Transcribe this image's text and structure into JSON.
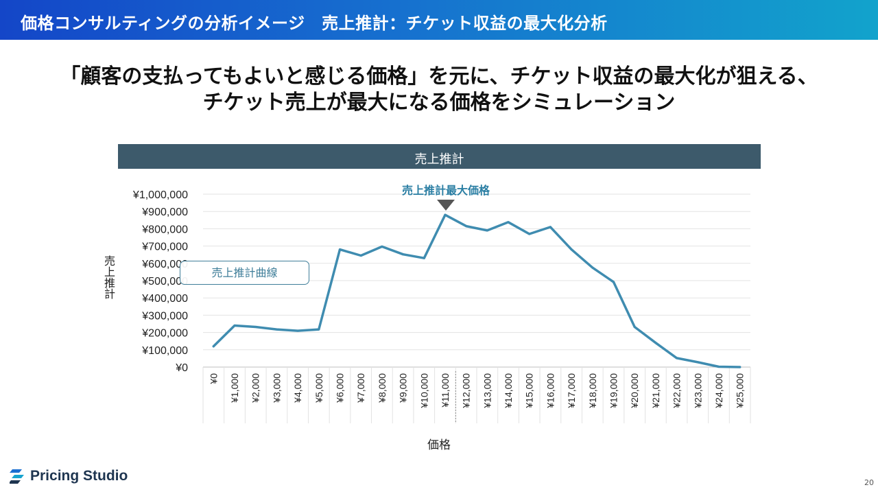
{
  "header": {
    "title": "価格コンサルティングの分析イメージ　売上推計：チケット収益の最大化分析"
  },
  "headline": {
    "line1": "「顧客の支払ってもよいと感じる価格」を元に、チケット収益の最大化が狙える、",
    "line2": "チケット売上が最大になる価格をシミュレーション"
  },
  "chart_title": "売上推計",
  "annotations": {
    "peak_label": "売上推計最大価格",
    "curve_label": "売上推計曲線"
  },
  "footer": {
    "logo_text": "Pricing Studio",
    "page_number": "20"
  },
  "colors": {
    "header_gradient_start": "#1446c8",
    "header_gradient_end": "#12a3cc",
    "chart_title_bar": "#3d5a6b",
    "line": "#3f8cb0",
    "accent_text": "#2a7ea3"
  },
  "chart_data": {
    "type": "line",
    "title": "売上推計",
    "xlabel": "価格",
    "ylabel": "売上推計",
    "categories": [
      "¥0",
      "¥1,000",
      "¥2,000",
      "¥3,000",
      "¥4,000",
      "¥5,000",
      "¥6,000",
      "¥7,000",
      "¥8,000",
      "¥9,000",
      "¥10,000",
      "¥11,000",
      "¥12,000",
      "¥13,000",
      "¥14,000",
      "¥15,000",
      "¥16,000",
      "¥17,000",
      "¥18,000",
      "¥19,000",
      "¥20,000",
      "¥21,000",
      "¥22,000",
      "¥23,000",
      "¥24,000",
      "¥25,000"
    ],
    "series": [
      {
        "name": "売上推計曲線",
        "values": [
          120000,
          240000,
          232000,
          218000,
          210000,
          218000,
          680000,
          645000,
          697000,
          652000,
          630000,
          880000,
          815000,
          790000,
          838000,
          770000,
          810000,
          680000,
          575000,
          492000,
          232000,
          140000,
          52000,
          28000,
          2000,
          0
        ]
      }
    ],
    "yticks": [
      "¥0",
      "¥100,000",
      "¥200,000",
      "¥300,000",
      "¥400,000",
      "¥500,000",
      "¥600,000",
      "¥700,000",
      "¥800,000",
      "¥900,000",
      "¥1,000,000"
    ],
    "ylim": [
      0,
      1000000
    ],
    "grid": true,
    "peak_category": "¥11,000"
  }
}
